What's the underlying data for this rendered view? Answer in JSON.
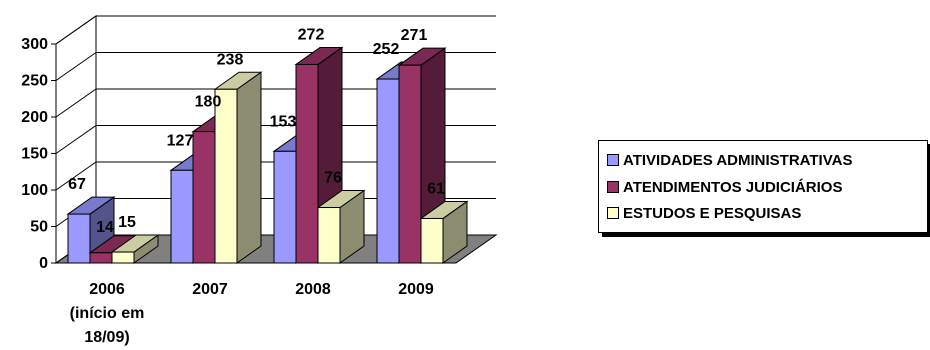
{
  "chart_data": {
    "type": "bar",
    "title": "",
    "xlabel": "",
    "ylabel": "",
    "ylim": [
      0,
      300
    ],
    "yticks": [
      0,
      50,
      100,
      150,
      200,
      250,
      300
    ],
    "categories": [
      [
        "2006",
        "(início em",
        "18/09)"
      ],
      [
        "2007"
      ],
      [
        "2008"
      ],
      [
        "2009"
      ]
    ],
    "series": [
      {
        "name": "ATIVIDADES ADMINISTRATIVAS",
        "values": [
          67,
          127,
          153,
          252
        ]
      },
      {
        "name": "ATENDIMENTOS JUDICIÁRIOS",
        "values": [
          14,
          180,
          272,
          271
        ]
      },
      {
        "name": "ESTUDOS E PESQUISAS",
        "values": [
          15,
          238,
          76,
          61
        ]
      }
    ],
    "colors": {
      "series": [
        "#9999ff",
        "#993366",
        "#ffffcc"
      ],
      "floor": "#808080",
      "background": "#ffffff",
      "grid": "#000000"
    },
    "grid": true,
    "legend": "right",
    "three_d": true
  }
}
